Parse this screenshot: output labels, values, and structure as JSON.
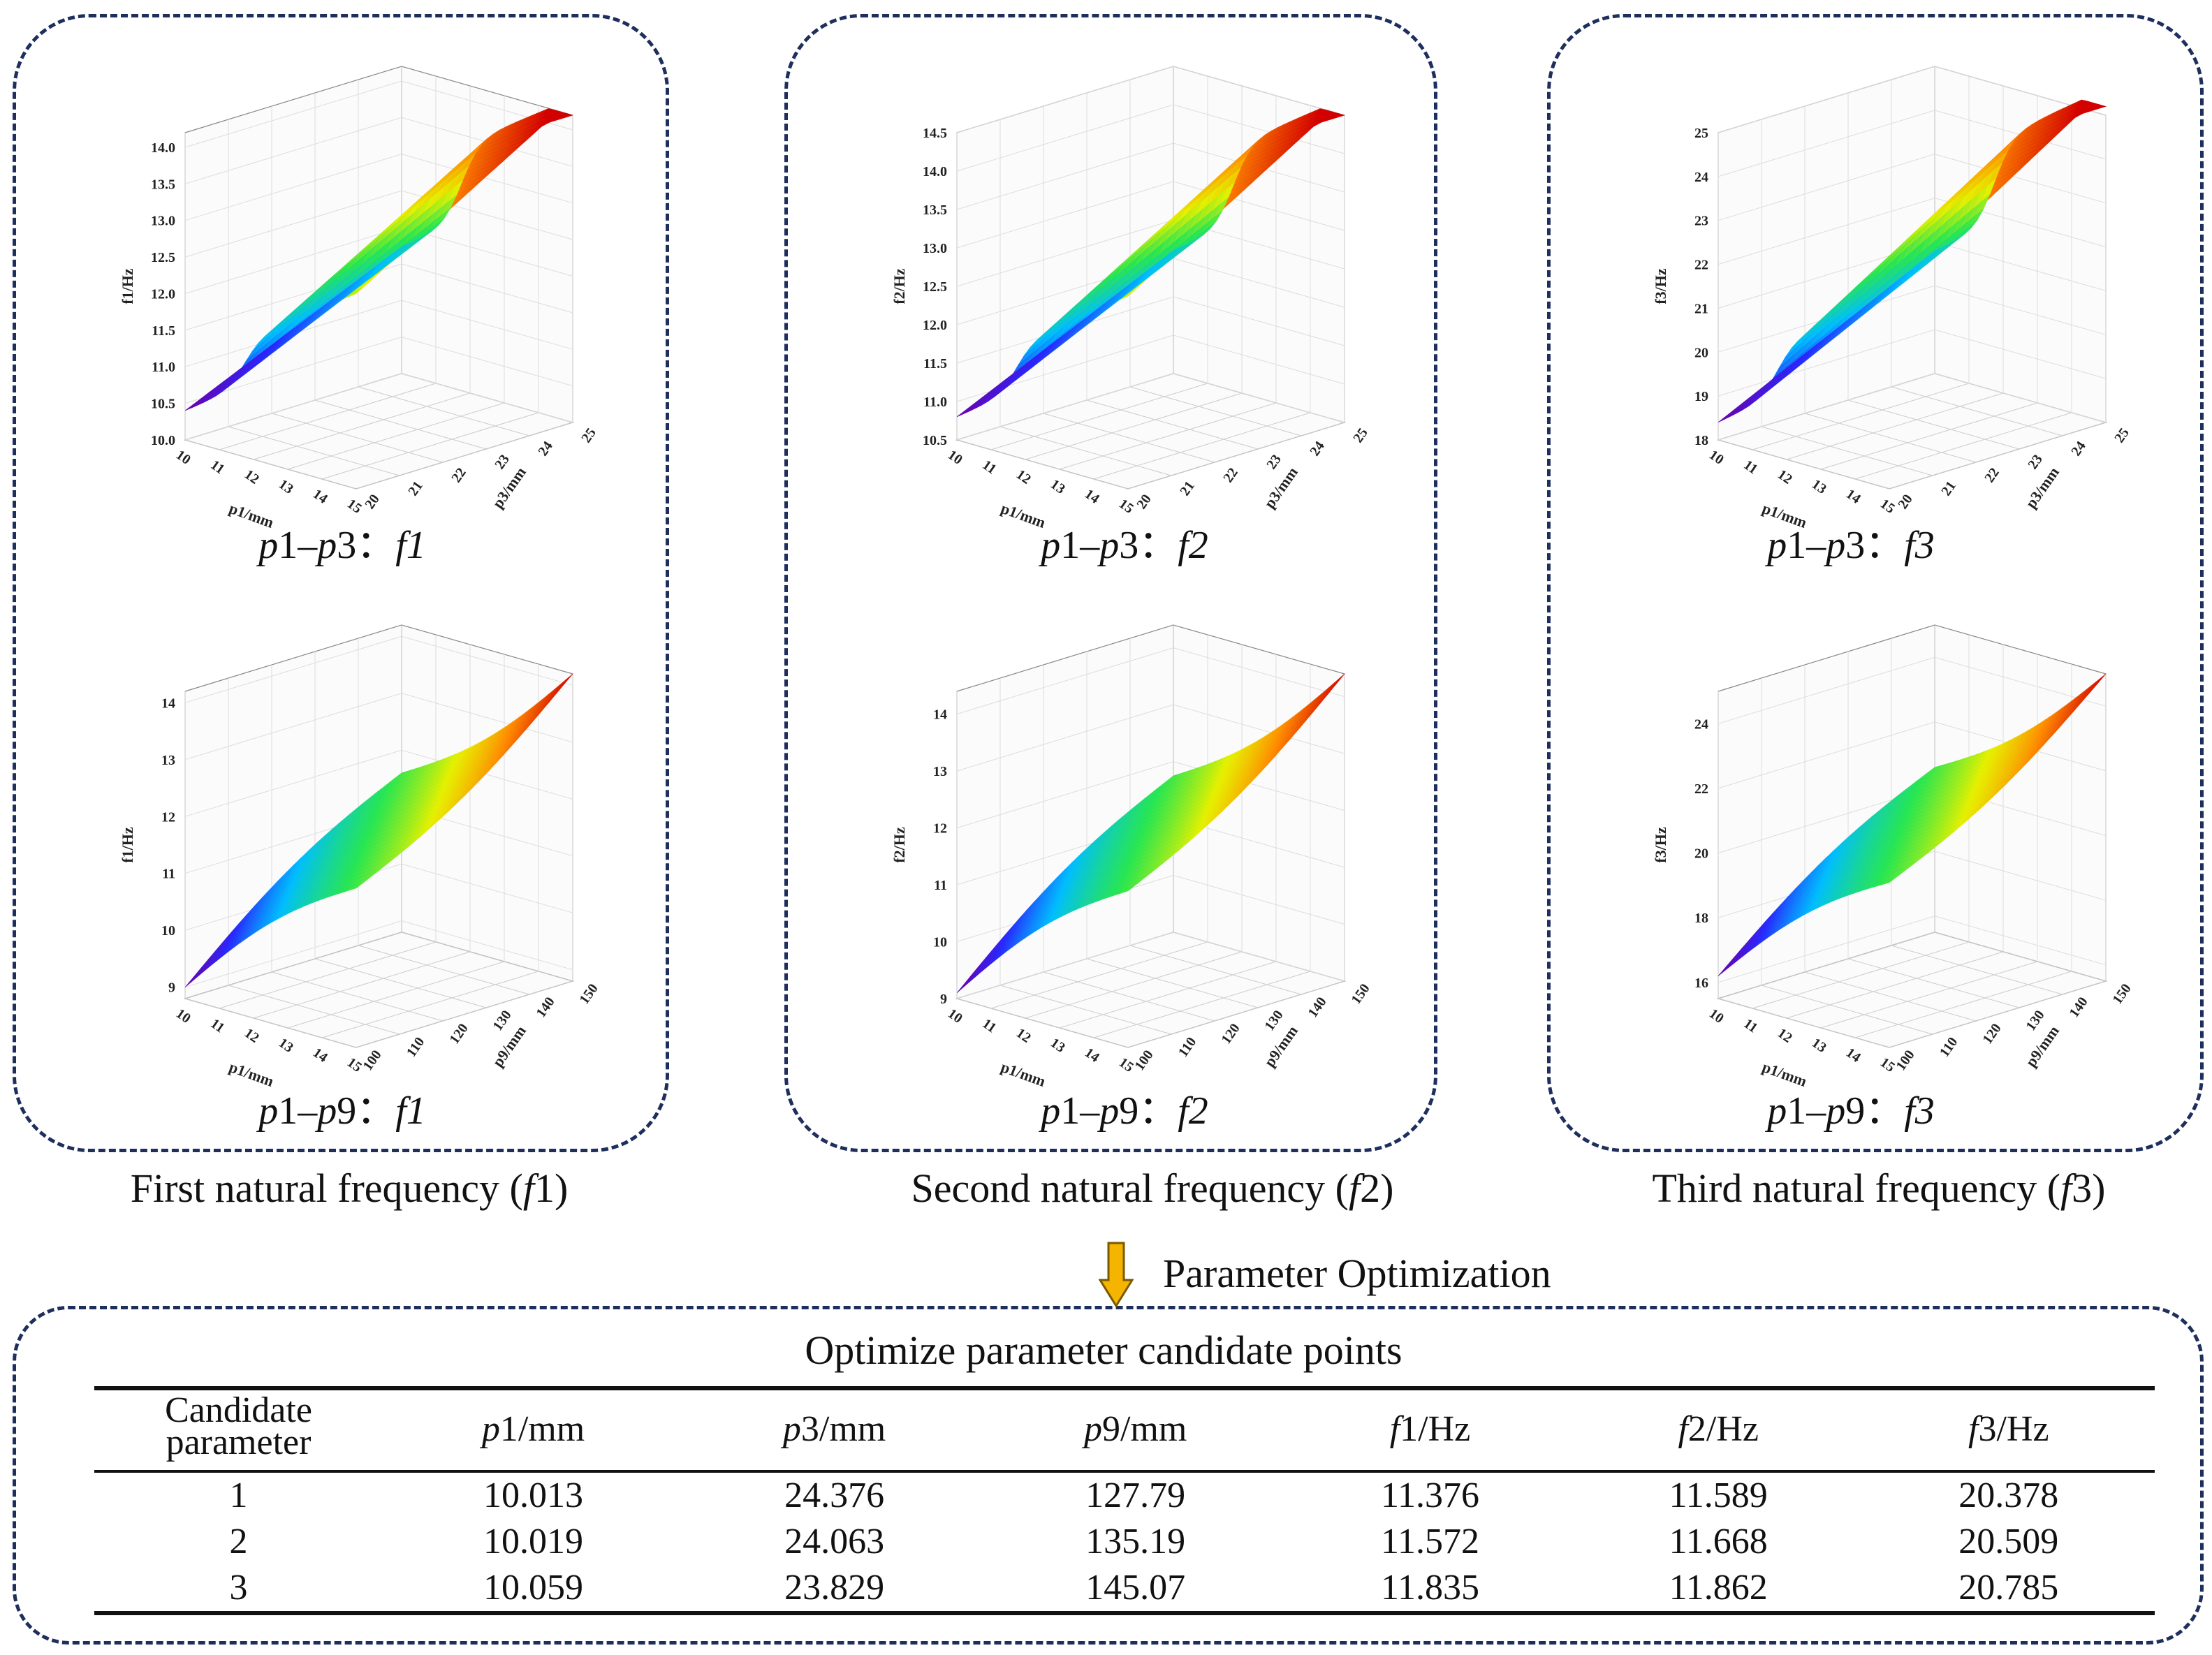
{
  "chart_data": [
    {
      "type": "surface3d",
      "id": "p1p3f1",
      "caption_prefix": "p1–p3：",
      "caption_f": "f1",
      "x_label": "p1/mm",
      "y_label": "p3/mm",
      "z_label": "f1/Hz",
      "x_ticks": [
        "10",
        "11",
        "12",
        "13",
        "14",
        "15"
      ],
      "y_ticks": [
        "20",
        "21",
        "22",
        "23",
        "24",
        "25"
      ],
      "z_ticks": [
        "10.0",
        "10.5",
        "11.0",
        "11.5",
        "12.0",
        "12.5",
        "13.0",
        "13.5",
        "14.0"
      ],
      "x_range": [
        10,
        15
      ],
      "y_range": [
        20,
        25
      ],
      "z_range": [
        10.0,
        14.2
      ],
      "z_min_value": 10.4,
      "z_max_value": 14.2,
      "surface_kind": "step"
    },
    {
      "type": "surface3d",
      "id": "p1p3f2",
      "caption_prefix": "p1–p3：",
      "caption_f": "f2",
      "x_label": "p1/mm",
      "y_label": "p3/mm",
      "z_label": "f2/Hz",
      "x_ticks": [
        "10",
        "11",
        "12",
        "13",
        "14",
        "15"
      ],
      "y_ticks": [
        "20",
        "21",
        "22",
        "23",
        "24",
        "25"
      ],
      "z_ticks": [
        "10.5",
        "11.0",
        "11.5",
        "12.0",
        "12.5",
        "13.0",
        "13.5",
        "14.0",
        "14.5"
      ],
      "x_range": [
        10,
        15
      ],
      "y_range": [
        20,
        25
      ],
      "z_range": [
        10.5,
        14.5
      ],
      "z_min_value": 10.8,
      "z_max_value": 14.5,
      "surface_kind": "step"
    },
    {
      "type": "surface3d",
      "id": "p1p3f3",
      "caption_prefix": "p1–p3：",
      "caption_f": "f3",
      "x_label": "p1/mm",
      "y_label": "p3/mm",
      "z_label": "f3/Hz",
      "x_ticks": [
        "10",
        "11",
        "12",
        "13",
        "14",
        "15"
      ],
      "y_ticks": [
        "20",
        "21",
        "22",
        "23",
        "24",
        "25"
      ],
      "z_ticks": [
        "18",
        "19",
        "20",
        "21",
        "22",
        "23",
        "24",
        "25"
      ],
      "x_range": [
        10,
        15
      ],
      "y_range": [
        20,
        25
      ],
      "z_range": [
        18,
        25
      ],
      "z_min_value": 18.4,
      "z_max_value": 25.2,
      "surface_kind": "step"
    },
    {
      "type": "surface3d",
      "id": "p1p9f1",
      "caption_prefix": "p1–p9：",
      "caption_f": "f1",
      "x_label": "p1/mm",
      "y_label": "p9/mm",
      "z_label": "f1/Hz",
      "x_ticks": [
        "10",
        "11",
        "12",
        "13",
        "14",
        "15"
      ],
      "y_ticks": [
        "100",
        "110",
        "120",
        "130",
        "140",
        "150"
      ],
      "z_ticks": [
        "9",
        "10",
        "11",
        "12",
        "13",
        "14"
      ],
      "x_range": [
        10,
        15
      ],
      "y_range": [
        100,
        150
      ],
      "z_range": [
        8.8,
        14.2
      ],
      "z_min_value": 9.0,
      "z_max_value": 14.2,
      "surface_kind": "smooth"
    },
    {
      "type": "surface3d",
      "id": "p1p9f2",
      "caption_prefix": "p1–p9：",
      "caption_f": "f2",
      "x_label": "p1/mm",
      "y_label": "p9/mm",
      "z_label": "f2/Hz",
      "x_ticks": [
        "10",
        "11",
        "12",
        "13",
        "14",
        "15"
      ],
      "y_ticks": [
        "100",
        "110",
        "120",
        "130",
        "140",
        "150"
      ],
      "z_ticks": [
        "9",
        "10",
        "11",
        "12",
        "13",
        "14"
      ],
      "x_range": [
        10,
        15
      ],
      "y_range": [
        100,
        150
      ],
      "z_range": [
        9,
        14.4
      ],
      "z_min_value": 9.1,
      "z_max_value": 14.4,
      "surface_kind": "smooth"
    },
    {
      "type": "surface3d",
      "id": "p1p9f3",
      "caption_prefix": "p1–p9：",
      "caption_f": "f3",
      "x_label": "p1/mm",
      "y_label": "p9/mm",
      "z_label": "f3/Hz",
      "x_ticks": [
        "10",
        "11",
        "12",
        "13",
        "14",
        "15"
      ],
      "y_ticks": [
        "100",
        "110",
        "120",
        "130",
        "140",
        "150"
      ],
      "z_ticks": [
        "16",
        "18",
        "20",
        "22",
        "24"
      ],
      "x_range": [
        10,
        15
      ],
      "y_range": [
        100,
        150
      ],
      "z_range": [
        15.5,
        25
      ],
      "z_min_value": 16.2,
      "z_max_value": 25.0,
      "surface_kind": "smooth"
    },
    {
      "type": "table",
      "title": "Optimize parameter candidate points",
      "columns": [
        "Candidate parameter",
        "p1/mm",
        "p3/mm",
        "p9/mm",
        "f1/Hz",
        "f2/Hz",
        "f3/Hz"
      ],
      "rows": [
        [
          "1",
          "10.013",
          "24.376",
          "127.79",
          "11.376",
          "11.589",
          "20.378"
        ],
        [
          "2",
          "10.019",
          "24.063",
          "135.19",
          "11.572",
          "11.668",
          "20.509"
        ],
        [
          "3",
          "10.059",
          "23.829",
          "145.07",
          "11.835",
          "11.862",
          "20.785"
        ]
      ]
    }
  ],
  "captions": {
    "group1": {
      "text": "First natural frequency (",
      "f": "f",
      "num": "1",
      ")": ")"
    },
    "group2": {
      "text": "Second natural frequency (",
      "f": "f",
      "num": "2",
      ")": ")"
    },
    "group3": {
      "text": "Third natural frequency (",
      "f": "f",
      "num": "3",
      ")": ")"
    },
    "arrow_label": "Parameter Optimization"
  },
  "table": {
    "title": "Optimize parameter candidate points",
    "header": {
      "c0a": "Candidate",
      "c0b": "parameter",
      "p1": "p",
      "p1n": "1/mm",
      "p3": "p",
      "p3n": "3/mm",
      "p9": "p",
      "p9n": "9/mm",
      "f1": "f",
      "f1n": "1/Hz",
      "f2": "f",
      "f2n": "2/Hz",
      "f3": "f",
      "f3n": "3/Hz"
    },
    "rows": [
      {
        "id": "1",
        "p1": "10.013",
        "p3": "24.376",
        "p9": "127.79",
        "f1": "11.376",
        "f2": "11.589",
        "f3": "20.378"
      },
      {
        "id": "2",
        "p1": "10.019",
        "p3": "24.063",
        "p9": "135.19",
        "f1": "11.572",
        "f2": "11.668",
        "f3": "20.509"
      },
      {
        "id": "3",
        "p1": "10.059",
        "p3": "23.829",
        "p9": "145.07",
        "f1": "11.835",
        "f2": "11.862",
        "f3": "20.785"
      }
    ]
  },
  "colors": {
    "panel_border": "#1e2f5e",
    "arrow_fill": "#f4b400",
    "arrow_stroke": "#7a5a00"
  }
}
